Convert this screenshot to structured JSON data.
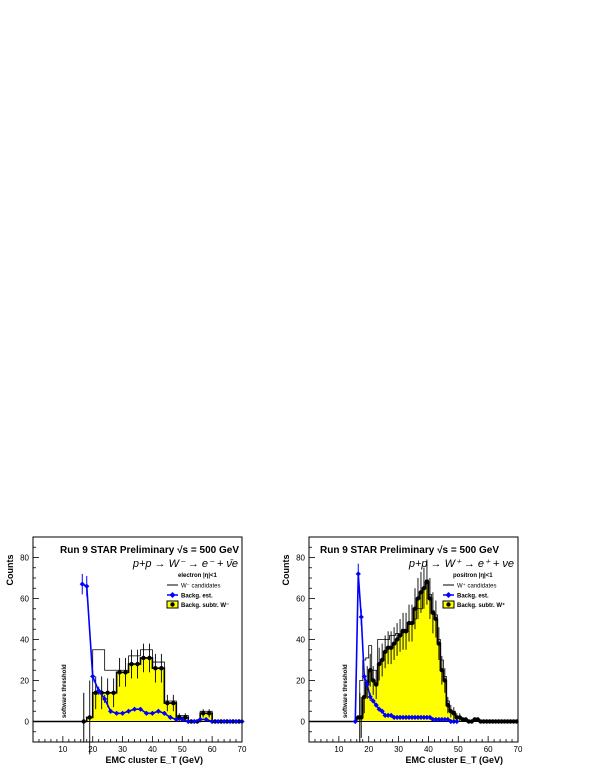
{
  "colors": {
    "fill": "#ffff00",
    "background_series": "#0000ff",
    "line": "#000000",
    "threshold": "#000000"
  },
  "chart_data": [
    {
      "type": "histogram",
      "title": "Run 9 STAR Preliminary √s = 500 GeV",
      "reaction": "p+p → W⁻ → e⁻ + ν̄e",
      "selection": "electron |η|<1",
      "threshold_label": "software threshold",
      "xlabel": "EMC cluster  E_T (GeV)",
      "ylabel": "Counts",
      "xlim": [
        0,
        70
      ],
      "ylim": [
        -10,
        90
      ],
      "xticks": [
        10,
        20,
        30,
        40,
        50,
        60,
        70
      ],
      "yticks": [
        0,
        20,
        40,
        60,
        80
      ],
      "threshold_x": 17,
      "legend": {
        "placement": "top-right",
        "entries": [
          "W⁻ candidates",
          "Backg. est.",
          "Backg. subtr. W⁻"
        ]
      },
      "bin_edges": [
        0,
        16,
        18,
        20,
        22,
        24,
        26,
        28,
        30,
        32,
        34,
        36,
        38,
        40,
        42,
        44,
        46,
        48,
        50,
        52,
        54,
        56,
        58,
        60,
        62,
        64,
        66,
        68,
        70
      ],
      "series": [
        {
          "name": "W⁻ candidates",
          "style": "line",
          "values": [
            0,
            0,
            2,
            35,
            35,
            25,
            25,
            25,
            25,
            32,
            32,
            35,
            35,
            29,
            29,
            10,
            10,
            3,
            3,
            0,
            0,
            5,
            5,
            0,
            0,
            0,
            0,
            0
          ]
        },
        {
          "name": "Backg. est.",
          "style": "points",
          "x": [
            16.5,
            18,
            20,
            22,
            24,
            26,
            28,
            30,
            32,
            34,
            36,
            38,
            40,
            42,
            44,
            46,
            48,
            50,
            52,
            54,
            56,
            58,
            60,
            62,
            64,
            66,
            68,
            70
          ],
          "values": [
            67,
            66,
            22,
            15,
            11,
            5,
            4,
            4,
            5,
            6,
            6,
            4,
            4,
            5,
            4,
            2,
            1,
            1,
            0,
            0,
            1,
            1,
            0,
            0,
            0,
            0,
            0,
            0
          ],
          "errors": [
            5,
            5,
            3,
            2,
            2,
            1,
            1,
            1,
            1,
            1,
            1,
            1,
            1,
            1,
            1,
            1,
            0,
            0,
            0,
            0,
            0,
            0,
            0,
            0,
            0,
            0,
            0,
            0
          ]
        },
        {
          "name": "Backg. subtr. W⁻",
          "style": "filled",
          "values": [
            0,
            0,
            2,
            14,
            14,
            14,
            14,
            24,
            24,
            28,
            28,
            31,
            31,
            26,
            26,
            9,
            9,
            2,
            2,
            0,
            0,
            4,
            4,
            0,
            0,
            0,
            0,
            0
          ],
          "errors": [
            0,
            0,
            18,
            8,
            8,
            7,
            7,
            7,
            7,
            7,
            7,
            7,
            7,
            7,
            7,
            4,
            4,
            2,
            2,
            0,
            0,
            2,
            2,
            0,
            0,
            0,
            0,
            0
          ]
        }
      ]
    },
    {
      "type": "histogram",
      "title": "Run 9 STAR Preliminary √s = 500 GeV",
      "reaction": "p+p → W⁺ → e⁺ + νe",
      "selection": "positron |η|<1",
      "threshold_label": "software threshold",
      "xlabel": "EMC cluster  E_T (GeV)",
      "ylabel": "Counts",
      "xlim": [
        0,
        70
      ],
      "ylim": [
        -10,
        90
      ],
      "xticks": [
        10,
        20,
        30,
        40,
        50,
        60,
        70
      ],
      "yticks": [
        0,
        20,
        40,
        60,
        80
      ],
      "threshold_x": 17,
      "legend": {
        "placement": "top-right",
        "entries": [
          "W⁺ candidates",
          "Backg. est.",
          "Backg. subtr. W⁺"
        ]
      },
      "bin_edges": [
        0,
        15,
        16,
        17,
        18,
        19,
        20,
        21,
        22,
        23,
        24,
        25,
        26,
        27,
        28,
        29,
        30,
        31,
        32,
        33,
        34,
        35,
        36,
        37,
        38,
        39,
        40,
        41,
        42,
        43,
        44,
        45,
        46,
        47,
        48,
        49,
        50,
        51,
        52,
        53,
        54,
        55,
        56,
        57,
        58,
        59,
        60,
        61,
        62,
        63,
        64,
        65,
        66,
        67,
        68,
        69,
        70
      ],
      "series": [
        {
          "name": "W⁺ candidates",
          "style": "line",
          "values": [
            0,
            0,
            2,
            20,
            30,
            31,
            37,
            25,
            25,
            40,
            40,
            40,
            40,
            42,
            42,
            43,
            42,
            45,
            45,
            48,
            48,
            50,
            55,
            55,
            65,
            69,
            62,
            54,
            52,
            40,
            30,
            22,
            10,
            5,
            5,
            2,
            2,
            1,
            1,
            0,
            0,
            1,
            1,
            0,
            0,
            0,
            0,
            0,
            0,
            0,
            0,
            0,
            0,
            0,
            0,
            0
          ]
        },
        {
          "name": "Backg. est.",
          "style": "points",
          "x": [
            15.5,
            16.5,
            17.5,
            18.5,
            19.5,
            20.5,
            21.5,
            22.5,
            23.5,
            24.5,
            25.5,
            26.5,
            27.5,
            28.5,
            29.5,
            30.5,
            31.5,
            32.5,
            33.5,
            34.5,
            35.5,
            36.5,
            37.5,
            38.5,
            39.5,
            40.5,
            41.5,
            42.5,
            43.5,
            44.5,
            45.5,
            46.5,
            47.5,
            48.5,
            49.5
          ],
          "values": [
            0,
            72,
            51,
            22,
            18,
            12,
            10,
            8,
            6,
            5,
            3,
            3,
            3,
            2,
            2,
            2,
            2,
            2,
            2,
            2,
            2,
            2,
            2,
            2,
            2,
            2,
            1,
            1,
            1,
            1,
            1,
            1,
            0,
            0,
            0
          ],
          "errors": [
            0,
            5,
            4,
            2,
            2,
            2,
            1,
            1,
            1,
            1,
            1,
            1,
            0,
            0,
            0,
            0,
            0,
            0,
            0,
            0,
            0,
            0,
            0,
            0,
            0,
            0,
            0,
            0,
            0,
            0,
            0,
            0,
            0,
            0,
            0
          ]
        },
        {
          "name": "Backg. subtr. W⁺",
          "style": "filled",
          "values": [
            0,
            0,
            2,
            2,
            12,
            19,
            25,
            20,
            18,
            28,
            30,
            34,
            36,
            36,
            38,
            40,
            42,
            44,
            44,
            48,
            48,
            55,
            60,
            63,
            65,
            68,
            60,
            53,
            50,
            38,
            25,
            20,
            8,
            5,
            4,
            2,
            2,
            1,
            1,
            0,
            0,
            1,
            1,
            0,
            0,
            0,
            0,
            0,
            0,
            0,
            0,
            0,
            0,
            0,
            0,
            0
          ],
          "errors": [
            0,
            0,
            0,
            10,
            8,
            8,
            8,
            7,
            7,
            8,
            8,
            8,
            8,
            8,
            8,
            8,
            8,
            9,
            9,
            9,
            9,
            10,
            10,
            10,
            10,
            11,
            10,
            10,
            9,
            8,
            7,
            6,
            4,
            3,
            3,
            2,
            2,
            1,
            1,
            0,
            0,
            1,
            1,
            0,
            0,
            0,
            0,
            0,
            0,
            0,
            0,
            0,
            0,
            0,
            0,
            0
          ]
        }
      ]
    }
  ]
}
